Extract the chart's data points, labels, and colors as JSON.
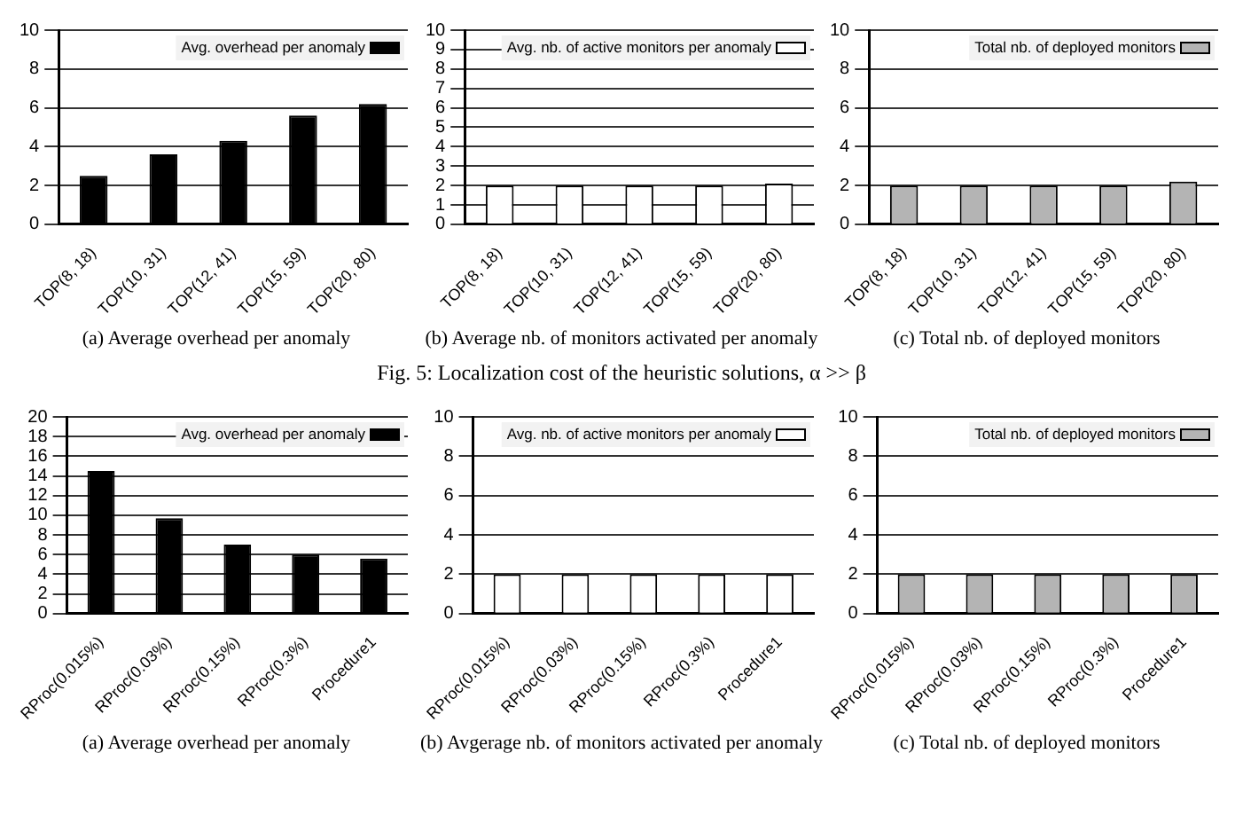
{
  "chart_data": [
    {
      "type": "bar",
      "categories": [
        "TOP(8, 18)",
        "TOP(10, 31)",
        "TOP(12, 41)",
        "TOP(15, 59)",
        "TOP(20, 80)"
      ],
      "series": [
        {
          "name": "Avg. overhead per anomaly",
          "color": "#000000",
          "values": [
            2.5,
            3.6,
            4.3,
            5.6,
            6.2
          ]
        }
      ],
      "ylim": [
        0,
        10
      ],
      "yticks": [
        0,
        2,
        4,
        6,
        8,
        10
      ],
      "grid": "y",
      "legend": "top right",
      "annotations": [
        "(a) Average overhead per anomaly"
      ]
    },
    {
      "type": "bar",
      "categories": [
        "TOP(8, 18)",
        "TOP(10, 31)",
        "TOP(12, 41)",
        "TOP(15, 59)",
        "TOP(20, 80)"
      ],
      "series": [
        {
          "name": "Avg. nb. of active monitors per anomaly",
          "color": "#ffffff",
          "values": [
            2,
            2,
            2,
            2,
            2.1
          ]
        }
      ],
      "ylim": [
        0,
        10
      ],
      "yticks": [
        0,
        1,
        2,
        3,
        4,
        5,
        6,
        7,
        8,
        9,
        10
      ],
      "grid": "y",
      "legend": "top right",
      "annotations": [
        "(b) Average nb. of monitors activated per anomaly",
        "Fig. 5: Localization cost of the heuristic solutions, α >> β"
      ]
    },
    {
      "type": "bar",
      "categories": [
        "TOP(8, 18)",
        "TOP(10, 31)",
        "TOP(12, 41)",
        "TOP(15, 59)",
        "TOP(20, 80)"
      ],
      "series": [
        {
          "name": "Total nb. of deployed monitors",
          "color": "#b4b4b4",
          "values": [
            2,
            2,
            2,
            2,
            2.2
          ]
        }
      ],
      "ylim": [
        0,
        10
      ],
      "yticks": [
        0,
        2,
        4,
        6,
        8,
        10
      ],
      "grid": "y",
      "legend": "top right",
      "annotations": [
        "(c) Total nb. of deployed monitors"
      ]
    },
    {
      "type": "bar",
      "categories": [
        "RProc(0.015%)",
        "RProc(0.03%)",
        "RProc(0.15%)",
        "RProc(0.3%)",
        "Procedure1"
      ],
      "series": [
        {
          "name": "Avg. overhead per anomaly",
          "color": "#000000",
          "values": [
            14.5,
            9.7,
            7.0,
            6.0,
            5.6
          ]
        }
      ],
      "ylim": [
        0,
        20
      ],
      "yticks": [
        0,
        2,
        4,
        6,
        8,
        10,
        12,
        14,
        16,
        18,
        20
      ],
      "grid": "y",
      "legend": "top right",
      "annotations": [
        "(a) Average overhead per anomaly"
      ]
    },
    {
      "type": "bar",
      "categories": [
        "RProc(0.015%)",
        "RProc(0.03%)",
        "RProc(0.15%)",
        "RProc(0.3%)",
        "Procedure1"
      ],
      "series": [
        {
          "name": "Avg. nb. of active monitors per anomaly",
          "color": "#ffffff",
          "values": [
            2,
            2,
            2,
            2,
            2
          ]
        }
      ],
      "ylim": [
        0,
        10
      ],
      "yticks": [
        0,
        2,
        4,
        6,
        8,
        10
      ],
      "grid": "y",
      "legend": "top right",
      "annotations": [
        "(b) Avgerage nb. of monitors activated per anomaly"
      ]
    },
    {
      "type": "bar",
      "categories": [
        "RProc(0.015%)",
        "RProc(0.03%)",
        "RProc(0.15%)",
        "RProc(0.3%)",
        "Procedure1"
      ],
      "series": [
        {
          "name": "Total nb. of deployed monitors",
          "color": "#b4b4b4",
          "values": [
            2,
            2,
            2,
            2,
            2
          ]
        }
      ],
      "ylim": [
        0,
        10
      ],
      "yticks": [
        0,
        2,
        4,
        6,
        8,
        10
      ],
      "grid": "y",
      "legend": "top right",
      "annotations": [
        "(c) Total nb. of deployed monitors"
      ]
    }
  ]
}
